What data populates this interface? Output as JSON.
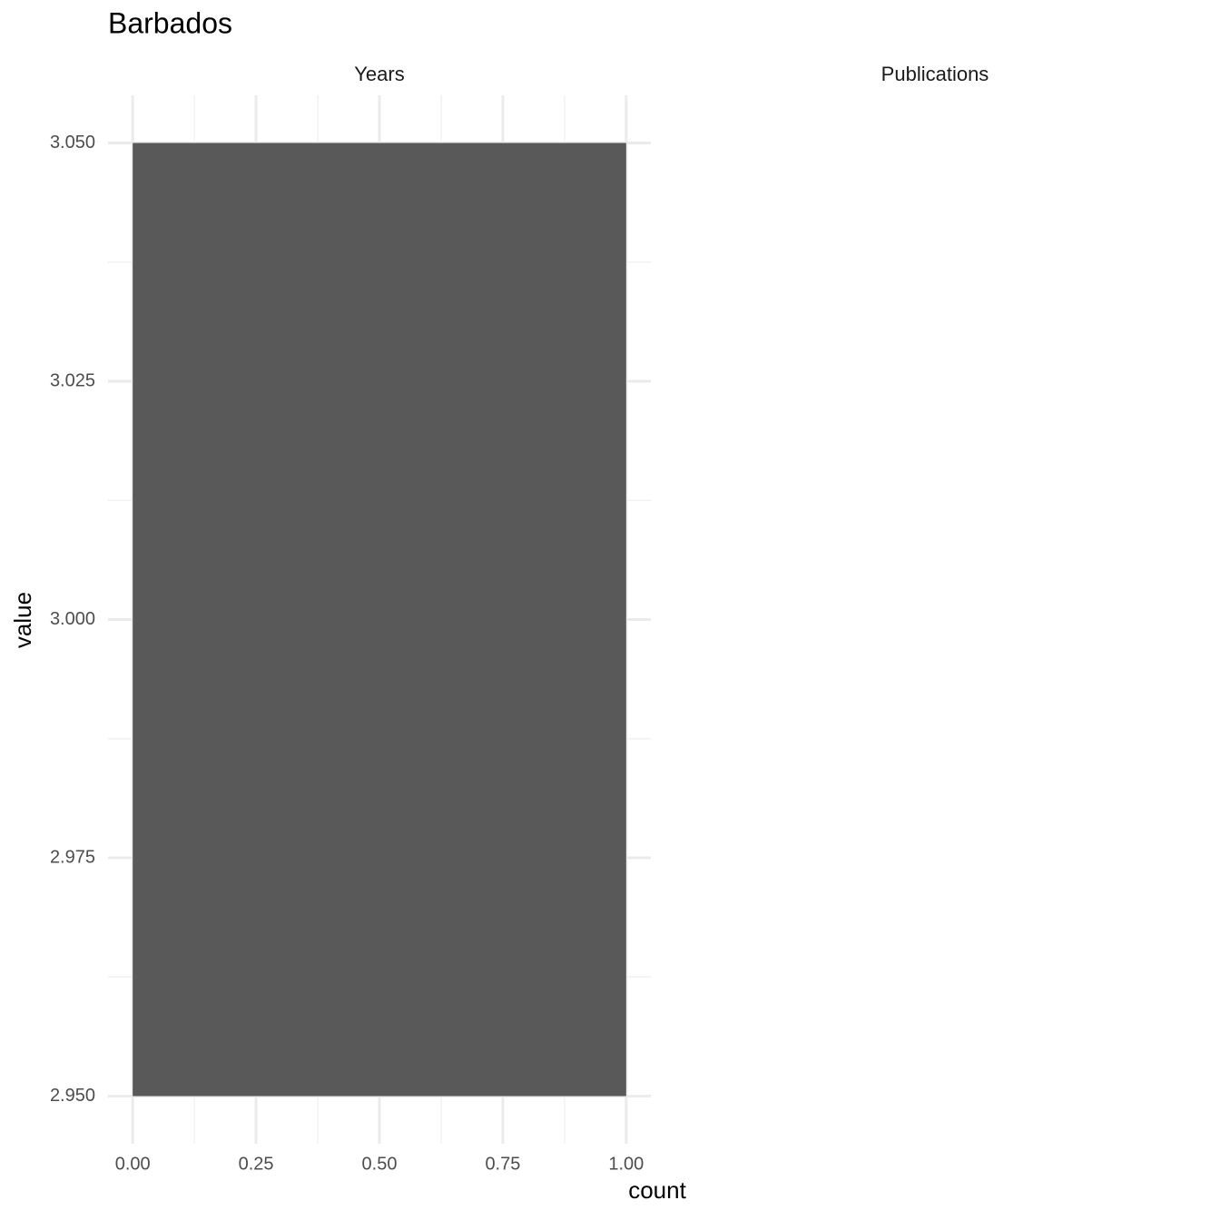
{
  "chart_data": {
    "type": "histogram",
    "orientation": "horizontal",
    "title": "Barbados",
    "facets": [
      "Years",
      "Publications"
    ],
    "xlabel": "count",
    "ylabel": "value",
    "bins": [
      2.95,
      3.05
    ],
    "counts": [
      1
    ],
    "color": "#595959",
    "xlim": [
      -0.05,
      1.05
    ],
    "xticks": [
      {
        "value": 0,
        "label": "0.00"
      },
      {
        "value": 0.25,
        "label": "0.25"
      },
      {
        "value": 0.5,
        "label": "0.50"
      },
      {
        "value": 0.75,
        "label": "0.75"
      },
      {
        "value": 1,
        "label": "1.00"
      }
    ],
    "ylim": [
      2.945,
      3.055
    ],
    "yticks": [
      {
        "value": 2.95,
        "label": "2.950"
      },
      {
        "value": 2.975,
        "label": "2.975"
      },
      {
        "value": 3,
        "label": "3.000"
      },
      {
        "value": 3.025,
        "label": "3.025"
      },
      {
        "value": 3.05,
        "label": "3.050"
      }
    ],
    "grid": true
  }
}
